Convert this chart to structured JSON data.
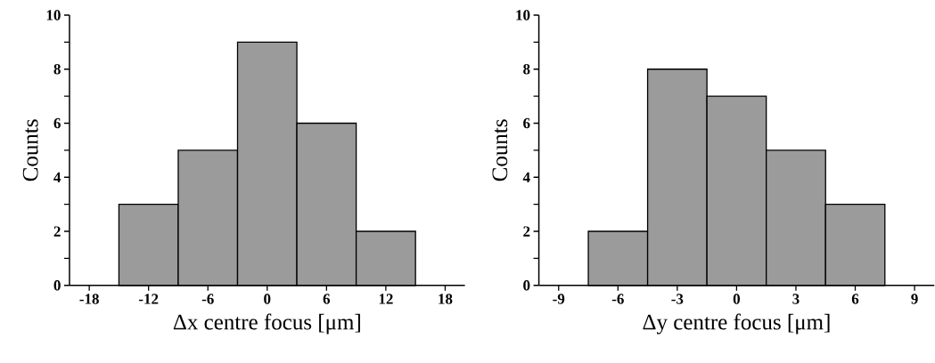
{
  "chart_data": [
    {
      "type": "histogram",
      "xlabel": "Δx centre focus [μm]",
      "ylabel": "Counts",
      "bins": [
        -15,
        -9,
        -3,
        3,
        9,
        15
      ],
      "values": [
        3,
        5,
        9,
        6,
        2
      ],
      "color": "#9b9b9b",
      "xlim": [
        -20,
        20
      ],
      "ylim": [
        0,
        10
      ],
      "xticks": [
        -18,
        -12,
        -6,
        0,
        6,
        12,
        18
      ],
      "yticks": [
        0,
        {
          "value": 1,
          "label": null
        },
        2,
        {
          "value": 3,
          "label": null
        },
        4,
        {
          "value": 5,
          "label": null
        },
        6,
        {
          "value": 7,
          "label": null
        },
        8,
        {
          "value": 9,
          "label": null
        },
        10
      ],
      "grid": false
    },
    {
      "type": "histogram",
      "xlabel": "Δy centre focus [μm]",
      "ylabel": "Counts",
      "bins": [
        -7.5,
        -4.5,
        -1.5,
        1.5,
        4.5,
        7.5
      ],
      "values": [
        2,
        8,
        7,
        5,
        3
      ],
      "color": "#9b9b9b",
      "xlim": [
        -10,
        10
      ],
      "ylim": [
        0,
        10
      ],
      "xticks": [
        -9,
        -6,
        -3,
        0,
        3,
        6,
        9
      ],
      "yticks": [
        0,
        {
          "value": 1,
          "label": null
        },
        2,
        {
          "value": 3,
          "label": null
        },
        4,
        {
          "value": 5,
          "label": null
        },
        6,
        {
          "value": 7,
          "label": null
        },
        8,
        {
          "value": 9,
          "label": null
        },
        10
      ],
      "grid": false
    }
  ]
}
